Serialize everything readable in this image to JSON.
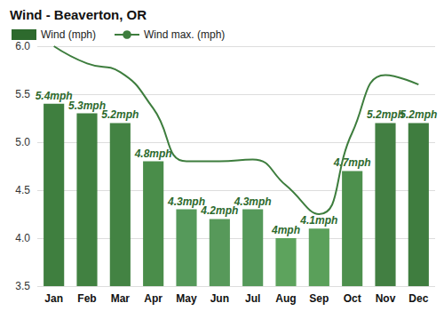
{
  "chart_data": {
    "type": "bar",
    "title": "Wind - Beaverton, OR",
    "categories": [
      "Jan",
      "Feb",
      "Mar",
      "Apr",
      "May",
      "Jun",
      "Jul",
      "Aug",
      "Sep",
      "Oct",
      "Nov",
      "Dec"
    ],
    "series": [
      {
        "name": "Wind (mph)",
        "type": "bar",
        "color": "#2d6a2d",
        "colors": [
          "#3f7f3f",
          "#418141",
          "#438343",
          "#4a8d4a",
          "#55995a",
          "#57995a",
          "#55995a",
          "#5da35d",
          "#5aa05a",
          "#4d904d",
          "#427f42",
          "#3f7d3f"
        ],
        "values": [
          5.4,
          5.3,
          5.2,
          4.8,
          4.3,
          4.2,
          4.3,
          4.0,
          4.1,
          4.7,
          5.2,
          5.2
        ],
        "value_labels": [
          "5.4mph",
          "5.3mph",
          "5.2mph",
          "4.8mph",
          "4.3mph",
          "4.2mph",
          "4.3mph",
          "4mph",
          "4.1mph",
          "4.7mph",
          "5.2mph",
          "5.2mph"
        ]
      },
      {
        "name": "Wind max. (mph)",
        "type": "line",
        "color": "#3d7d3d",
        "line_style": "smooth",
        "values": [
          6.0,
          5.82,
          5.73,
          5.35,
          4.8,
          4.8,
          4.82,
          4.55,
          4.25,
          5.1,
          5.7,
          5.6
        ]
      }
    ],
    "ylim": [
      3.5,
      6.0
    ],
    "yticks": [
      3.5,
      {
        "value": 4,
        "label": "4.0"
      },
      4.5,
      {
        "value": 5,
        "label": "5.0"
      },
      5.5,
      {
        "value": 6,
        "label": "6.0"
      }
    ],
    "grid": true,
    "data_labels": true,
    "legend": "upper left"
  }
}
